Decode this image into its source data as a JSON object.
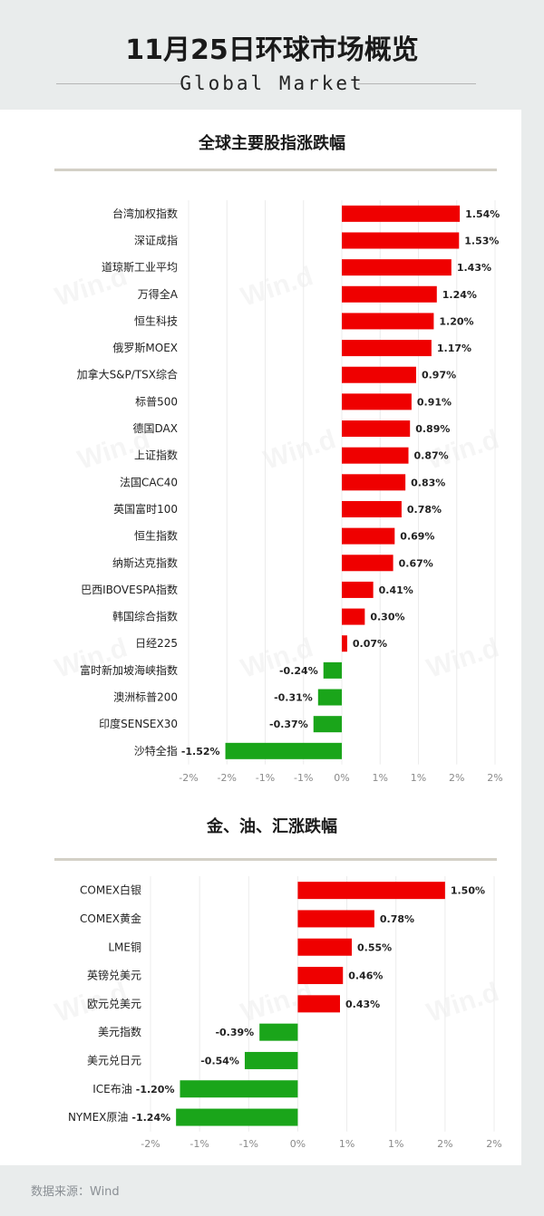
{
  "header": {
    "title": "11月25日环球市场概览",
    "subtitle": "Global Market"
  },
  "source": "数据来源：Wind",
  "watermark": "Win.d",
  "colors": {
    "positive": "#ef0000",
    "negative": "#1aa51a",
    "rule": "#d3d0c6"
  },
  "chart_data": [
    {
      "type": "bar",
      "orientation": "horizontal",
      "title": "全球主要股指涨跌幅",
      "categories": [
        "台湾加权指数",
        "深证成指",
        "道琼斯工业平均",
        "万得全A",
        "恒生科技",
        "俄罗斯MOEX",
        "加拿大S&P/TSX综合",
        "标普500",
        "德国DAX",
        "上证指数",
        "法国CAC40",
        "英国富时100",
        "恒生指数",
        "纳斯达克指数",
        "巴西IBOVESPA指数",
        "韩国综合指数",
        "日经225",
        "富时新加坡海峡指数",
        "澳洲标普200",
        "印度SENSEX30",
        "沙特全指"
      ],
      "values": [
        1.54,
        1.53,
        1.43,
        1.24,
        1.2,
        1.17,
        0.97,
        0.91,
        0.89,
        0.87,
        0.83,
        0.78,
        0.69,
        0.67,
        0.41,
        0.3,
        0.07,
        -0.24,
        -0.31,
        -0.37,
        -1.52
      ],
      "value_labels": [
        "1.54%",
        "1.53%",
        "1.43%",
        "1.24%",
        "1.20%",
        "1.17%",
        "0.97%",
        "0.91%",
        "0.89%",
        "0.87%",
        "0.83%",
        "0.78%",
        "0.69%",
        "0.67%",
        "0.41%",
        "0.30%",
        "0.07%",
        "-0.24%",
        "-0.31%",
        "-0.37%",
        "-1.52%"
      ],
      "xlim": [
        -2,
        2
      ],
      "tick_values": [
        -2,
        -1.5,
        -1,
        -0.5,
        0,
        0.5,
        1,
        1.5,
        2
      ],
      "tick_labels": [
        "-2%",
        "-2%",
        "-1%",
        "-1%",
        "0%",
        "1%",
        "1%",
        "2%",
        "2%"
      ],
      "grid": true
    },
    {
      "type": "bar",
      "orientation": "horizontal",
      "title": "金、油、汇涨跌幅",
      "categories": [
        "COMEX白银",
        "COMEX黄金",
        "LME铜",
        "英镑兑美元",
        "欧元兑美元",
        "美元指数",
        "美元兑日元",
        "ICE布油",
        "NYMEX原油"
      ],
      "values": [
        1.5,
        0.78,
        0.55,
        0.46,
        0.43,
        -0.39,
        -0.54,
        -1.2,
        -1.24
      ],
      "value_labels": [
        "1.50%",
        "0.78%",
        "0.55%",
        "0.46%",
        "0.43%",
        "-0.39%",
        "-0.54%",
        "-1.20%",
        "-1.24%"
      ],
      "xlim": [
        -1.5,
        2
      ],
      "tick_values": [
        -1.5,
        -1,
        -0.5,
        0,
        0.5,
        1,
        1.5,
        2
      ],
      "tick_labels": [
        "-2%",
        "-1%",
        "-1%",
        "0%",
        "1%",
        "1%",
        "2%",
        "2%"
      ],
      "grid": true
    }
  ]
}
